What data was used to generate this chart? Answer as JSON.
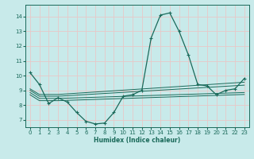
{
  "bg_color": "#c8eaea",
  "grid_color": "#e8c8c8",
  "line_color": "#1a6a5a",
  "xlabel": "Humidex (Indice chaleur)",
  "xlim": [
    -0.5,
    23.5
  ],
  "ylim": [
    6.5,
    14.8
  ],
  "yticks": [
    7,
    8,
    9,
    10,
    11,
    12,
    13,
    14
  ],
  "xticks": [
    0,
    1,
    2,
    3,
    4,
    5,
    6,
    7,
    8,
    9,
    10,
    11,
    12,
    13,
    14,
    15,
    16,
    17,
    18,
    19,
    20,
    21,
    22,
    23
  ],
  "line1_x": [
    0,
    1,
    2,
    3,
    4,
    5,
    6,
    7,
    8,
    9,
    10,
    11,
    12,
    13,
    14,
    15,
    16,
    17,
    18,
    19,
    20,
    21,
    22,
    23
  ],
  "line1_y": [
    10.2,
    9.4,
    8.1,
    8.5,
    8.2,
    7.5,
    6.9,
    6.72,
    6.78,
    7.5,
    8.6,
    8.7,
    9.0,
    12.55,
    14.1,
    14.25,
    13.0,
    11.4,
    9.4,
    9.3,
    8.7,
    9.0,
    9.1,
    9.8
  ],
  "line2_x": [
    0,
    1,
    3,
    23
  ],
  "line2_y": [
    9.1,
    8.72,
    8.72,
    9.55
  ],
  "line3_x": [
    0,
    1,
    3,
    23
  ],
  "line3_y": [
    9.0,
    8.6,
    8.6,
    9.35
  ],
  "line4_x": [
    0,
    1,
    3,
    23
  ],
  "line4_y": [
    8.85,
    8.45,
    8.45,
    8.85
  ],
  "line5_x": [
    0,
    1,
    3,
    23
  ],
  "line5_y": [
    8.7,
    8.3,
    8.3,
    8.72
  ]
}
